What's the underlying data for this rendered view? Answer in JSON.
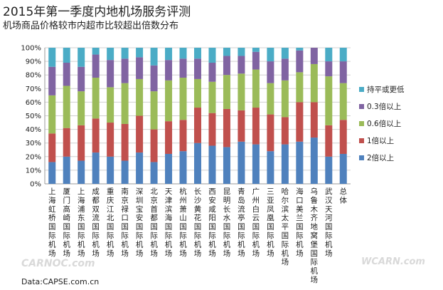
{
  "title": "2015年第一季度内地机场服务评测",
  "subtitle": "机场商品价格较市内超市比较超出倍数分布",
  "source": "Data:CAPSE.com.cn",
  "watermarks": [
    "CARNOC.com",
    "WCARN.com"
  ],
  "chart_data": {
    "type": "bar",
    "stacked": true,
    "percent": true,
    "categories": [
      "上海虹桥国际机场",
      "厦门高崎国际机场",
      "上海浦东国际机场",
      "成都双流国际机场",
      "重庆江北国际机场",
      "南京禄口国际机场",
      "深圳宝安国际机场",
      "北京首都国际机场",
      "天津滨海国际机场",
      "杭州萧山国际机场",
      "长沙黄花国际机场",
      "西安咸阳国际机场",
      "昆明长水国际机场",
      "青岛流亭国际机场",
      "广州白云国际机场",
      "三亚凤凰国际机场",
      "哈尔滨太平国际机场",
      "海口美兰国际机场",
      "乌鲁木齐地窝堡国际机场",
      "武汉天河国际机场",
      "总体"
    ],
    "series": [
      {
        "name": "2倍以上",
        "color": "#4f81bd",
        "values": [
          16,
          20,
          17,
          23,
          20,
          17,
          23,
          16,
          22,
          24,
          30,
          28,
          27,
          31,
          29,
          24,
          29,
          31,
          34,
          20,
          22
        ]
      },
      {
        "name": "1倍以上",
        "color": "#c0504d",
        "values": [
          21,
          21,
          26,
          25,
          25,
          27,
          27,
          24,
          24,
          23,
          26,
          24,
          28,
          23,
          27,
          27,
          20,
          29,
          26,
          23,
          25
        ]
      },
      {
        "name": "0.6倍以上",
        "color": "#9bbb59",
        "values": [
          28,
          31,
          25,
          30,
          26,
          30,
          27,
          28,
          30,
          31,
          21,
          23,
          25,
          27,
          28,
          23,
          27,
          22,
          28,
          36,
          27
        ]
      },
      {
        "name": "0.3倍以上",
        "color": "#8064a2",
        "values": [
          21,
          17,
          18,
          17,
          20,
          18,
          16,
          19,
          15,
          14,
          15,
          14,
          14,
          13,
          13,
          16,
          16,
          16,
          12,
          11,
          16
        ]
      },
      {
        "name": "持平或更低",
        "color": "#4bacc6",
        "values": [
          14,
          11,
          14,
          5,
          9,
          8,
          7,
          13,
          9,
          8,
          8,
          11,
          6,
          6,
          3,
          10,
          8,
          2,
          0,
          10,
          10
        ]
      }
    ],
    "ylim": [
      0,
      100
    ],
    "yticks": [
      "0%",
      "10%",
      "20%",
      "30%",
      "40%",
      "50%",
      "60%",
      "70%",
      "80%",
      "90%",
      "100%"
    ],
    "legend_position": "right",
    "legend_order": [
      "持平或更低",
      "0.3倍以上",
      "0.6倍以上",
      "1倍以上",
      "2倍以上"
    ]
  }
}
